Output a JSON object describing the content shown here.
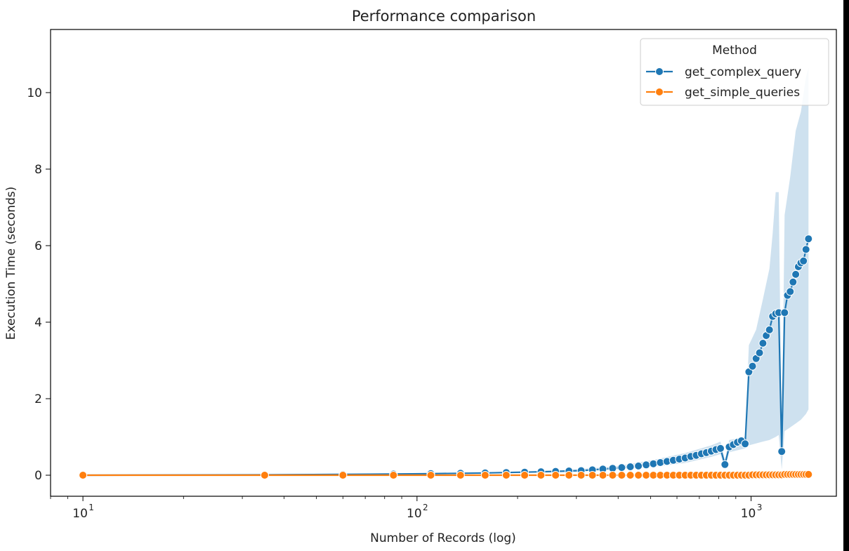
{
  "chart_data": {
    "type": "line",
    "title": "Performance comparison",
    "xlabel": "Number of Records (log)",
    "ylabel": "Execution Time (seconds)",
    "xscale": "log",
    "xlim": [
      8,
      1800
    ],
    "ylim": [
      -0.55,
      11.65
    ],
    "x_ticks": [
      {
        "value": 10,
        "base": "10",
        "exp": "1"
      },
      {
        "value": 100,
        "base": "10",
        "exp": "2"
      },
      {
        "value": 1000,
        "base": "10",
        "exp": "3"
      }
    ],
    "y_ticks": [
      {
        "value": 0,
        "label": "0"
      },
      {
        "value": 2,
        "label": "2"
      },
      {
        "value": 4,
        "label": "4"
      },
      {
        "value": 6,
        "label": "6"
      },
      {
        "value": 8,
        "label": "8"
      },
      {
        "value": 10,
        "label": "10"
      }
    ],
    "grid": false,
    "legend": {
      "title": "Method",
      "position": "top-right"
    },
    "series": [
      {
        "name": "get_complex_query",
        "color": "#1f77b4",
        "confidence_band": true,
        "points": [
          [
            10,
            0.0
          ],
          [
            35,
            0.01
          ],
          [
            60,
            0.02
          ],
          [
            85,
            0.03
          ],
          [
            110,
            0.04
          ],
          [
            135,
            0.05
          ],
          [
            160,
            0.06
          ],
          [
            185,
            0.07
          ],
          [
            210,
            0.08
          ],
          [
            235,
            0.09
          ],
          [
            260,
            0.1
          ],
          [
            285,
            0.11
          ],
          [
            310,
            0.12
          ],
          [
            335,
            0.14
          ],
          [
            360,
            0.16
          ],
          [
            385,
            0.18
          ],
          [
            410,
            0.2
          ],
          [
            435,
            0.22
          ],
          [
            460,
            0.24
          ],
          [
            485,
            0.27
          ],
          [
            510,
            0.3
          ],
          [
            535,
            0.33
          ],
          [
            560,
            0.36
          ],
          [
            585,
            0.39
          ],
          [
            610,
            0.42
          ],
          [
            635,
            0.45
          ],
          [
            660,
            0.49
          ],
          [
            685,
            0.52
          ],
          [
            710,
            0.56
          ],
          [
            735,
            0.59
          ],
          [
            760,
            0.63
          ],
          [
            785,
            0.67
          ],
          [
            810,
            0.7
          ],
          [
            835,
            0.28
          ],
          [
            860,
            0.74
          ],
          [
            885,
            0.8
          ],
          [
            910,
            0.86
          ],
          [
            935,
            0.9
          ],
          [
            960,
            0.82
          ],
          [
            985,
            2.7
          ],
          [
            1010,
            2.85
          ],
          [
            1035,
            3.05
          ],
          [
            1060,
            3.2
          ],
          [
            1085,
            3.45
          ],
          [
            1110,
            3.65
          ],
          [
            1135,
            3.8
          ],
          [
            1160,
            4.15
          ],
          [
            1185,
            4.22
          ],
          [
            1210,
            4.25
          ],
          [
            1235,
            0.62
          ],
          [
            1260,
            4.25
          ],
          [
            1285,
            4.7
          ],
          [
            1310,
            4.8
          ],
          [
            1335,
            5.05
          ],
          [
            1360,
            5.25
          ],
          [
            1385,
            5.45
          ],
          [
            1410,
            5.55
          ],
          [
            1435,
            5.6
          ],
          [
            1460,
            5.9
          ],
          [
            1485,
            6.18
          ]
        ],
        "band_upper": [
          [
            10,
            0.0
          ],
          [
            135,
            0.06
          ],
          [
            260,
            0.12
          ],
          [
            385,
            0.22
          ],
          [
            510,
            0.4
          ],
          [
            635,
            0.58
          ],
          [
            760,
            0.78
          ],
          [
            810,
            0.88
          ],
          [
            835,
            0.4
          ],
          [
            860,
            0.92
          ],
          [
            960,
            1.0
          ],
          [
            985,
            3.4
          ],
          [
            1035,
            3.8
          ],
          [
            1085,
            4.6
          ],
          [
            1135,
            5.4
          ],
          [
            1160,
            6.3
          ],
          [
            1185,
            7.4
          ],
          [
            1210,
            7.4
          ],
          [
            1235,
            0.8
          ],
          [
            1260,
            6.8
          ],
          [
            1310,
            7.8
          ],
          [
            1360,
            9.0
          ],
          [
            1410,
            9.5
          ],
          [
            1460,
            10.4
          ],
          [
            1485,
            10.65
          ]
        ],
        "band_lower": [
          [
            10,
            0.0
          ],
          [
            135,
            0.04
          ],
          [
            260,
            0.08
          ],
          [
            385,
            0.14
          ],
          [
            510,
            0.22
          ],
          [
            635,
            0.32
          ],
          [
            760,
            0.48
          ],
          [
            810,
            0.55
          ],
          [
            835,
            0.18
          ],
          [
            860,
            0.6
          ],
          [
            960,
            0.7
          ],
          [
            985,
            0.78
          ],
          [
            1035,
            0.83
          ],
          [
            1085,
            0.88
          ],
          [
            1135,
            0.92
          ],
          [
            1185,
            1.0
          ],
          [
            1210,
            1.05
          ],
          [
            1235,
            0.15
          ],
          [
            1260,
            1.15
          ],
          [
            1310,
            1.25
          ],
          [
            1360,
            1.35
          ],
          [
            1410,
            1.45
          ],
          [
            1460,
            1.6
          ],
          [
            1485,
            1.72
          ]
        ]
      },
      {
        "name": "get_simple_queries",
        "color": "#ff7f0e",
        "points": [
          [
            10,
            0.0
          ],
          [
            35,
            0.0
          ],
          [
            60,
            0.0
          ],
          [
            85,
            0.0
          ],
          [
            110,
            0.0
          ],
          [
            135,
            0.0
          ],
          [
            160,
            0.0
          ],
          [
            185,
            0.0
          ],
          [
            210,
            0.0
          ],
          [
            235,
            0.0
          ],
          [
            260,
            0.0
          ],
          [
            285,
            0.0
          ],
          [
            310,
            0.0
          ],
          [
            335,
            0.0
          ],
          [
            360,
            0.0
          ],
          [
            385,
            0.0
          ],
          [
            410,
            0.0
          ],
          [
            435,
            0.0
          ],
          [
            460,
            0.0
          ],
          [
            485,
            0.0
          ],
          [
            510,
            0.0
          ],
          [
            535,
            0.0
          ],
          [
            560,
            0.0
          ],
          [
            585,
            0.0
          ],
          [
            610,
            0.0
          ],
          [
            635,
            0.0
          ],
          [
            660,
            0.0
          ],
          [
            685,
            0.0
          ],
          [
            710,
            0.0
          ],
          [
            735,
            0.0
          ],
          [
            760,
            0.0
          ],
          [
            785,
            0.0
          ],
          [
            810,
            0.0
          ],
          [
            835,
            0.0
          ],
          [
            860,
            0.0
          ],
          [
            885,
            0.0
          ],
          [
            910,
            0.0
          ],
          [
            935,
            0.0
          ],
          [
            960,
            0.0
          ],
          [
            985,
            0.0
          ],
          [
            1010,
            0.01
          ],
          [
            1035,
            0.01
          ],
          [
            1060,
            0.01
          ],
          [
            1085,
            0.01
          ],
          [
            1110,
            0.01
          ],
          [
            1135,
            0.01
          ],
          [
            1160,
            0.01
          ],
          [
            1185,
            0.01
          ],
          [
            1210,
            0.01
          ],
          [
            1235,
            0.01
          ],
          [
            1260,
            0.02
          ],
          [
            1285,
            0.02
          ],
          [
            1310,
            0.02
          ],
          [
            1335,
            0.02
          ],
          [
            1360,
            0.02
          ],
          [
            1385,
            0.02
          ],
          [
            1410,
            0.02
          ],
          [
            1435,
            0.02
          ],
          [
            1460,
            0.02
          ],
          [
            1485,
            0.02
          ]
        ]
      }
    ]
  }
}
